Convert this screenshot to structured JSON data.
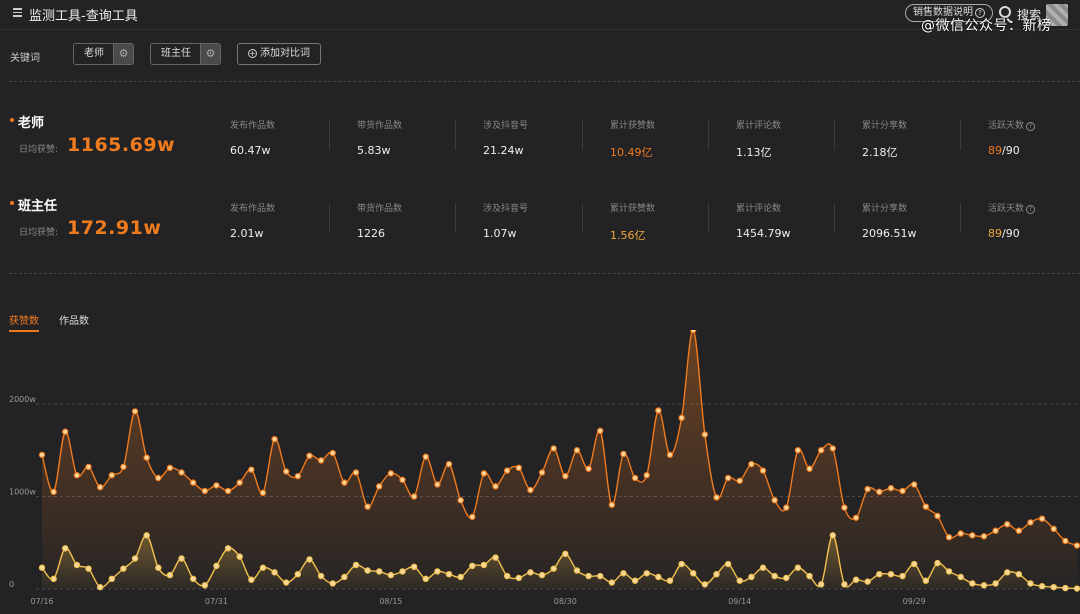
{
  "header": {
    "title": "监测工具-查询工具",
    "explain_label": "销售数据说明",
    "search_label": "搜索",
    "watermark": "@微信公众号：新榜"
  },
  "keywords_bar": {
    "label": "关键词",
    "chips": [
      "老师",
      "班主任"
    ],
    "add_label": "添加对比词"
  },
  "daily_label": "日均获赞:",
  "keywords": [
    {
      "name": "老师",
      "daily_value": "1165.69w",
      "stats": [
        {
          "label": "发布作品数",
          "value": "60.47w",
          "highlight": false
        },
        {
          "label": "带货作品数",
          "value": "5.83w",
          "highlight": false
        },
        {
          "label": "涉及抖音号",
          "value": "21.24w",
          "highlight": false
        },
        {
          "label": "累计获赞数",
          "value": "10.49亿",
          "highlight": true
        },
        {
          "label": "累计评论数",
          "value": "1.13亿",
          "highlight": false
        },
        {
          "label": "累计分享数",
          "value": "2.18亿",
          "highlight": false
        },
        {
          "label": "活跃天数",
          "value_main": "89",
          "value_rest": "/90",
          "help": true
        }
      ]
    },
    {
      "name": "班主任",
      "daily_value": "172.91w",
      "stats": [
        {
          "label": "发布作品数",
          "value": "2.01w",
          "highlight": false
        },
        {
          "label": "带货作品数",
          "value": "1226",
          "highlight": false
        },
        {
          "label": "涉及抖音号",
          "value": "1.07w",
          "highlight": false
        },
        {
          "label": "累计获赞数",
          "value": "1.56亿",
          "highlight": true
        },
        {
          "label": "累计评论数",
          "value": "1454.79w",
          "highlight": false
        },
        {
          "label": "累计分享数",
          "value": "2096.51w",
          "highlight": false
        },
        {
          "label": "活跃天数",
          "value_main": "89",
          "value_rest": "/90",
          "help": true
        }
      ]
    }
  ],
  "tabs": [
    "获赞数",
    "作品数"
  ],
  "colors": {
    "accent": "#f07a1e",
    "series_teacher": "#f07a1e",
    "series_headteacher": "#f2c14e",
    "background": "#232325"
  },
  "chart_data": {
    "type": "line",
    "ylabel": "",
    "yticks": [
      "0",
      "1000w",
      "2000w"
    ],
    "ylim": [
      0,
      2800
    ],
    "xticks": [
      "07/16",
      "07/31",
      "08/15",
      "08/30",
      "09/14",
      "09/29"
    ],
    "x": [
      "07/16",
      "07/17",
      "07/18",
      "07/19",
      "07/20",
      "07/21",
      "07/22",
      "07/23",
      "07/24",
      "07/25",
      "07/26",
      "07/27",
      "07/28",
      "07/29",
      "07/30",
      "07/31",
      "08/01",
      "08/02",
      "08/03",
      "08/04",
      "08/05",
      "08/06",
      "08/07",
      "08/08",
      "08/09",
      "08/10",
      "08/11",
      "08/12",
      "08/13",
      "08/14",
      "08/15",
      "08/16",
      "08/17",
      "08/18",
      "08/19",
      "08/20",
      "08/21",
      "08/22",
      "08/23",
      "08/24",
      "08/25",
      "08/26",
      "08/27",
      "08/28",
      "08/29",
      "08/30",
      "08/31",
      "09/01",
      "09/02",
      "09/03",
      "09/04",
      "09/05",
      "09/06",
      "09/07",
      "09/08",
      "09/09",
      "09/10",
      "09/11",
      "09/12",
      "09/13",
      "09/14",
      "09/15",
      "09/16",
      "09/17",
      "09/18",
      "09/19",
      "09/20",
      "09/21",
      "09/22",
      "09/23",
      "09/24",
      "09/25",
      "09/26",
      "09/27",
      "09/28",
      "09/29",
      "09/30",
      "10/01",
      "10/02",
      "10/03",
      "10/04",
      "10/05",
      "10/06",
      "10/07",
      "10/08",
      "10/09",
      "10/10",
      "10/11",
      "10/12",
      "10/13"
    ],
    "series": [
      {
        "name": "老师",
        "values": [
          1450,
          1050,
          1700,
          1230,
          1320,
          1100,
          1230,
          1320,
          1920,
          1420,
          1200,
          1310,
          1260,
          1150,
          1060,
          1120,
          1060,
          1150,
          1290,
          1040,
          1620,
          1270,
          1220,
          1440,
          1390,
          1470,
          1150,
          1260,
          890,
          1110,
          1250,
          1180,
          1000,
          1430,
          1130,
          1350,
          960,
          780,
          1250,
          1110,
          1280,
          1310,
          1070,
          1260,
          1520,
          1220,
          1500,
          1300,
          1710,
          910,
          1460,
          1200,
          1230,
          1930,
          1450,
          1850,
          2800,
          1670,
          990,
          1200,
          1170,
          1350,
          1280,
          960,
          880,
          1500,
          1300,
          1500,
          1520,
          880,
          770,
          1080,
          1050,
          1090,
          1060,
          1130,
          890,
          790,
          560,
          600,
          580,
          570,
          630,
          700,
          630,
          720,
          760,
          650,
          520,
          470
        ]
      },
      {
        "name": "班主任",
        "values": [
          230,
          110,
          440,
          260,
          220,
          20,
          110,
          220,
          330,
          580,
          230,
          150,
          330,
          110,
          40,
          250,
          440,
          350,
          100,
          230,
          180,
          70,
          160,
          320,
          140,
          60,
          130,
          260,
          200,
          190,
          150,
          190,
          240,
          110,
          190,
          160,
          130,
          250,
          260,
          340,
          140,
          120,
          180,
          150,
          220,
          380,
          200,
          140,
          140,
          70,
          170,
          90,
          170,
          130,
          90,
          270,
          170,
          50,
          160,
          270,
          90,
          130,
          230,
          140,
          120,
          230,
          140,
          50,
          580,
          50,
          100,
          80,
          160,
          160,
          140,
          270,
          90,
          280,
          190,
          130,
          60,
          40,
          60,
          180,
          160,
          60,
          30,
          20,
          10,
          5
        ]
      }
    ]
  }
}
